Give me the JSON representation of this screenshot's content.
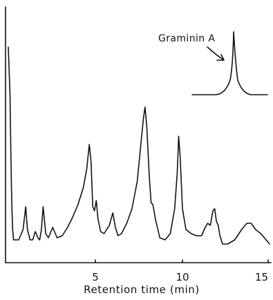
{
  "chart_data": {
    "type": "line",
    "xlabel": "Retention time (min)",
    "ylabel": "",
    "title": "",
    "xlim": [
      0,
      15
    ],
    "x_ticks": [
      "5",
      "10",
      "15"
    ],
    "grid": false,
    "x": [
      0,
      0.1,
      0.15,
      0.2,
      0.25,
      0.3,
      0.4,
      0.6,
      0.85,
      1.0,
      1.1,
      1.25,
      1.4,
      1.55,
      1.7,
      1.8,
      1.9,
      2.0,
      2.15,
      2.3,
      2.4,
      2.55,
      2.8,
      3.1,
      3.4,
      3.7,
      4.0,
      4.3,
      4.5,
      4.65,
      4.75,
      4.85,
      4.95,
      5.05,
      5.15,
      5.3,
      5.5,
      5.8,
      6.0,
      6.15,
      6.3,
      6.5,
      6.8,
      7.1,
      7.4,
      7.6,
      7.75,
      7.85,
      7.95,
      8.1,
      8.2,
      8.3,
      8.45,
      8.7,
      9.0,
      9.3,
      9.55,
      9.7,
      9.78,
      9.87,
      10.0,
      10.2,
      10.5,
      10.8,
      11.1,
      11.3,
      11.45,
      11.6,
      11.75,
      11.85,
      11.95,
      12.05,
      12.15,
      12.3,
      12.6,
      13.0,
      13.4,
      13.7,
      13.95,
      14.2,
      14.5,
      14.8,
      15.0
    ],
    "series": [
      {
        "values": [
          0.93,
          0.7,
          0.4,
          0.18,
          0.05,
          0.0,
          0.0,
          0.0,
          0.05,
          0.16,
          0.05,
          0.0,
          0.0,
          0.04,
          0.01,
          0.0,
          0.05,
          0.16,
          0.03,
          0.01,
          0.03,
          0.06,
          0.01,
          0.02,
          0.06,
          0.11,
          0.17,
          0.25,
          0.34,
          0.46,
          0.38,
          0.16,
          0.14,
          0.19,
          0.1,
          0.04,
          0.03,
          0.07,
          0.13,
          0.06,
          0.02,
          0.03,
          0.08,
          0.15,
          0.28,
          0.45,
          0.58,
          0.64,
          0.55,
          0.3,
          0.18,
          0.17,
          0.1,
          0.01,
          0.0,
          0.03,
          0.15,
          0.32,
          0.5,
          0.4,
          0.15,
          0.05,
          0.03,
          0.02,
          0.02,
          0.06,
          0.08,
          0.07,
          0.14,
          0.15,
          0.09,
          0.07,
          0.02,
          -0.02,
          -0.02,
          0.0,
          0.05,
          0.08,
          0.08,
          0.05,
          0.03,
          0.0,
          -0.02
        ]
      }
    ],
    "inset": {
      "peak_label": "Graminin A"
    }
  }
}
